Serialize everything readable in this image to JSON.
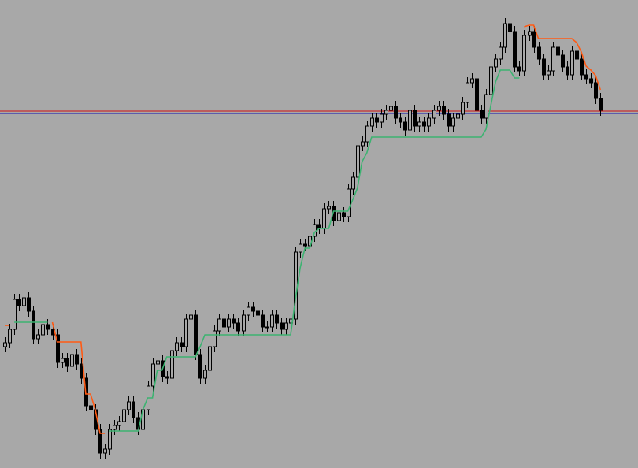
{
  "chart_data": {
    "type": "candlestick",
    "ylim": [
      0,
      594
    ],
    "background": "#a8a8a8",
    "up_color": "#a8a8a8",
    "down_color": "#000000",
    "outline_color": "#000000",
    "open": [
      154,
      159,
      176,
      214,
      206,
      216,
      199,
      164,
      169,
      182,
      176,
      169,
      134,
      139,
      129,
      144,
      132,
      114,
      79,
      74,
      49,
      19,
      24,
      49,
      54,
      59,
      74,
      84,
      64,
      49,
      74,
      104,
      132,
      136,
      116,
      114,
      149,
      159,
      154,
      189,
      194,
      144,
      114,
      124,
      154,
      174,
      189,
      179,
      189,
      184,
      174,
      194,
      204,
      199,
      194,
      179,
      179,
      194,
      184,
      176,
      184,
      189,
      274,
      284,
      282,
      294,
      309,
      304,
      329,
      332,
      314,
      324,
      319,
      354,
      369,
      409,
      414,
      434,
      444,
      439,
      449,
      454,
      459,
      444,
      439,
      429,
      454,
      434,
      439,
      434,
      444,
      454,
      459,
      449,
      434,
      444,
      449,
      464,
      489,
      494,
      454,
      444,
      474,
      509,
      519,
      534,
      564,
      554,
      509,
      504,
      549,
      554,
      534,
      519,
      499,
      504,
      534,
      524,
      509,
      499,
      529,
      519,
      499,
      494,
      489,
      469
    ],
    "high": [
      166,
      183,
      221,
      221,
      223,
      223,
      206,
      176,
      189,
      189,
      183,
      176,
      146,
      146,
      151,
      151,
      139,
      121,
      86,
      81,
      56,
      31,
      56,
      61,
      66,
      81,
      91,
      91,
      71,
      81,
      111,
      139,
      143,
      143,
      123,
      156,
      166,
      166,
      196,
      201,
      201,
      151,
      131,
      161,
      181,
      196,
      196,
      196,
      196,
      191,
      201,
      211,
      211,
      206,
      201,
      186,
      201,
      201,
      191,
      191,
      196,
      281,
      291,
      291,
      301,
      316,
      316,
      336,
      339,
      339,
      331,
      331,
      361,
      376,
      416,
      421,
      441,
      451,
      451,
      456,
      461,
      466,
      466,
      451,
      446,
      461,
      461,
      446,
      446,
      451,
      461,
      466,
      466,
      456,
      451,
      456,
      471,
      496,
      501,
      501,
      461,
      481,
      516,
      526,
      541,
      571,
      571,
      561,
      516,
      556,
      561,
      561,
      541,
      526,
      511,
      541,
      541,
      531,
      516,
      536,
      536,
      526,
      506,
      501,
      496,
      476
    ],
    "low": [
      147,
      152,
      169,
      199,
      199,
      192,
      157,
      157,
      162,
      169,
      162,
      127,
      127,
      122,
      122,
      125,
      107,
      72,
      67,
      42,
      12,
      12,
      17,
      42,
      47,
      52,
      67,
      57,
      42,
      42,
      67,
      97,
      125,
      109,
      107,
      107,
      142,
      147,
      147,
      182,
      137,
      107,
      107,
      117,
      147,
      167,
      172,
      172,
      177,
      167,
      167,
      187,
      192,
      187,
      172,
      172,
      172,
      177,
      169,
      169,
      177,
      182,
      267,
      275,
      275,
      287,
      297,
      297,
      322,
      307,
      307,
      312,
      312,
      347,
      362,
      402,
      407,
      427,
      432,
      432,
      442,
      447,
      437,
      432,
      422,
      422,
      427,
      427,
      427,
      427,
      437,
      447,
      442,
      427,
      427,
      437,
      442,
      457,
      482,
      447,
      437,
      437,
      467,
      502,
      512,
      527,
      547,
      502,
      497,
      497,
      542,
      527,
      512,
      492,
      492,
      497,
      517,
      502,
      492,
      492,
      512,
      492,
      487,
      482,
      462,
      447
    ],
    "close": [
      159,
      176,
      214,
      206,
      216,
      199,
      164,
      169,
      182,
      176,
      169,
      134,
      139,
      129,
      144,
      132,
      114,
      79,
      74,
      49,
      19,
      24,
      49,
      54,
      59,
      74,
      84,
      64,
      49,
      74,
      104,
      132,
      136,
      116,
      114,
      149,
      159,
      154,
      189,
      194,
      144,
      114,
      124,
      154,
      174,
      189,
      179,
      189,
      184,
      174,
      194,
      204,
      199,
      194,
      179,
      179,
      194,
      184,
      176,
      184,
      189,
      274,
      284,
      282,
      294,
      309,
      304,
      329,
      332,
      314,
      324,
      319,
      354,
      369,
      409,
      414,
      434,
      444,
      439,
      449,
      454,
      459,
      444,
      439,
      429,
      454,
      434,
      439,
      434,
      444,
      454,
      459,
      449,
      434,
      444,
      449,
      464,
      489,
      494,
      454,
      444,
      474,
      509,
      519,
      534,
      564,
      554,
      509,
      504,
      549,
      554,
      534,
      519,
      499,
      504,
      534,
      524,
      509,
      499,
      529,
      519,
      499,
      494,
      489,
      469,
      454
    ],
    "series": [
      {
        "color": "#3cb371",
        "values": [
          null,
          null,
          185,
          185,
          185,
          185,
          185,
          185,
          185,
          185,
          null,
          null,
          null,
          null,
          null,
          null,
          null,
          null,
          null,
          null,
          null,
          null,
          47,
          47,
          47,
          47,
          47,
          47,
          47,
          74,
          89,
          89,
          124,
          124,
          141,
          141,
          141,
          141,
          141,
          141,
          141,
          154,
          169,
          169,
          169,
          169,
          169,
          169,
          169,
          169,
          169,
          169,
          169,
          169,
          169,
          169,
          169,
          169,
          169,
          169,
          169,
          214,
          254,
          279,
          279,
          299,
          304,
          304,
          304,
          326,
          326,
          326,
          326,
          340,
          355,
          389,
          400,
          420,
          420,
          420,
          420,
          420,
          420,
          420,
          420,
          420,
          420,
          420,
          420,
          420,
          420,
          420,
          420,
          420,
          420,
          420,
          420,
          420,
          420,
          420,
          420,
          430,
          460,
          490,
          505,
          505,
          505,
          495,
          495,
          null,
          null,
          null,
          null,
          null,
          null,
          null,
          null,
          null,
          null,
          null,
          null,
          null,
          null,
          null,
          null,
          null
        ]
      },
      {
        "color": "#ff5a14",
        "values": [
          181,
          181,
          null,
          null,
          null,
          null,
          null,
          null,
          null,
          null,
          185,
          160,
          160,
          160,
          160,
          160,
          160,
          94,
          94,
          74,
          44,
          44,
          null,
          null,
          null,
          null,
          null,
          null,
          null,
          null,
          null,
          null,
          null,
          null,
          null,
          null,
          null,
          null,
          null,
          null,
          null,
          null,
          null,
          null,
          null,
          null,
          null,
          null,
          null,
          null,
          null,
          null,
          null,
          null,
          null,
          null,
          null,
          null,
          null,
          null,
          null,
          null,
          null,
          null,
          null,
          null,
          null,
          null,
          null,
          null,
          null,
          null,
          null,
          null,
          null,
          null,
          null,
          null,
          null,
          null,
          null,
          null,
          null,
          null,
          null,
          null,
          null,
          null,
          null,
          null,
          null,
          null,
          null,
          null,
          null,
          null,
          null,
          null,
          null,
          null,
          null,
          null,
          null,
          null,
          null,
          null,
          null,
          null,
          null,
          560,
          562,
          562,
          545,
          545,
          545,
          545,
          545,
          545,
          545,
          545,
          540,
          528,
          510,
          505,
          498,
          480
        ]
      }
    ],
    "levels": [
      {
        "value": 453,
        "color": "#d01010"
      },
      {
        "value": 450,
        "color": "#1010b0"
      }
    ]
  }
}
